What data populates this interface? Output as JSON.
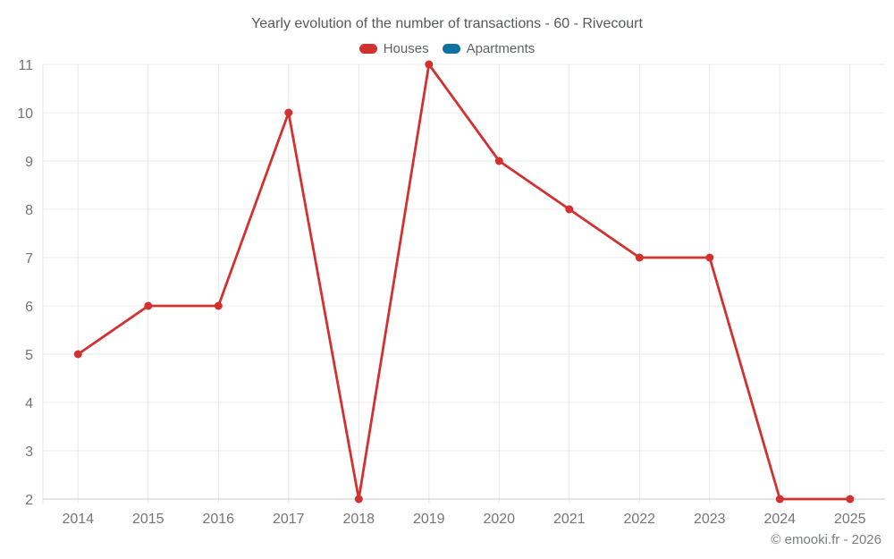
{
  "page": {
    "footer": "© emooki.fr - 2026"
  },
  "chart_data": {
    "type": "line",
    "title": "Yearly evolution of the number of transactions - 60 - Rivecourt",
    "categories": [
      "2014",
      "2015",
      "2016",
      "2017",
      "2018",
      "2019",
      "2020",
      "2021",
      "2022",
      "2023",
      "2024",
      "2025"
    ],
    "series": [
      {
        "name": "Houses",
        "color": "#d3312f",
        "values": [
          5,
          6,
          6,
          10,
          2,
          11,
          9,
          8,
          7,
          7,
          2,
          2
        ]
      },
      {
        "name": "Apartments",
        "color": "#1172a1",
        "values": []
      }
    ],
    "ylim": [
      2,
      11
    ],
    "ytick_step": 1,
    "xlabel": "",
    "ylabel": "",
    "grid": true,
    "legend_position": "top",
    "marker": "circle"
  }
}
